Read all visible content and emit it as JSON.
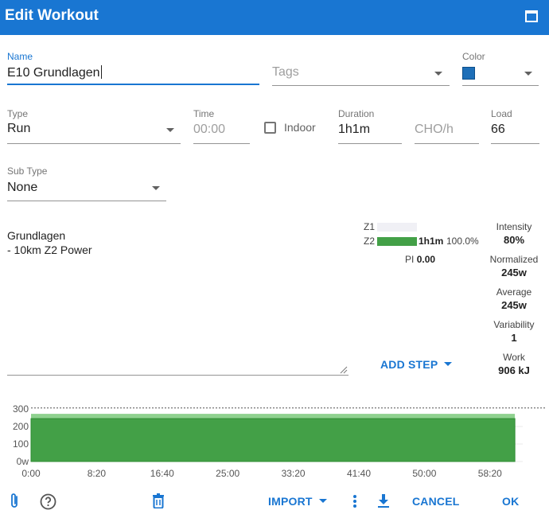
{
  "window": {
    "title": "Edit Workout"
  },
  "form": {
    "name_label": "Name",
    "name_value": "E10 Grundlagen",
    "tags_placeholder": "Tags",
    "color_label": "Color",
    "color_value": "#1e6fb8",
    "type_label": "Type",
    "type_value": "Run",
    "time_label": "Time",
    "time_placeholder": "00:00",
    "indoor_label": "Indoor",
    "indoor_checked": false,
    "duration_label": "Duration",
    "duration_value": "1h1m",
    "cho_placeholder": "CHO/h",
    "load_label": "Load",
    "load_value": "66",
    "subtype_label": "Sub Type",
    "subtype_value": "None",
    "description_line1": "Grundlagen",
    "description_line2": "- 10km Z2 Power"
  },
  "zones": [
    {
      "label": "Z1",
      "fraction": 0,
      "time": "",
      "percent": ""
    },
    {
      "label": "Z2",
      "fraction": 1.0,
      "time": "1h1m",
      "percent": "100.0%"
    }
  ],
  "pi": {
    "label": "PI",
    "value": "0.00"
  },
  "stats": [
    {
      "label": "Intensity",
      "value": "80%"
    },
    {
      "label": "Normalized",
      "value": "245w"
    },
    {
      "label": "Average",
      "value": "245w"
    },
    {
      "label": "Variability",
      "value": "1"
    },
    {
      "label": "Work",
      "value": "906 kJ"
    }
  ],
  "add_step_label": "ADD STEP",
  "chart_data": {
    "type": "area",
    "y_ticks": [
      "300",
      "200",
      "100",
      "0w"
    ],
    "x_ticks": [
      "0:00",
      "8:20",
      "16:40",
      "25:00",
      "33:20",
      "41:40",
      "50:00",
      "58:20"
    ],
    "ylim": [
      0,
      300
    ],
    "xlim_seconds": [
      0,
      3750
    ],
    "ftp_line": 306,
    "series": [
      {
        "color": "#43a047",
        "x_seconds": [
          0,
          3690
        ],
        "values": [
          245,
          245
        ]
      }
    ]
  },
  "footer": {
    "import_label": "IMPORT",
    "cancel_label": "CANCEL",
    "ok_label": "OK"
  }
}
